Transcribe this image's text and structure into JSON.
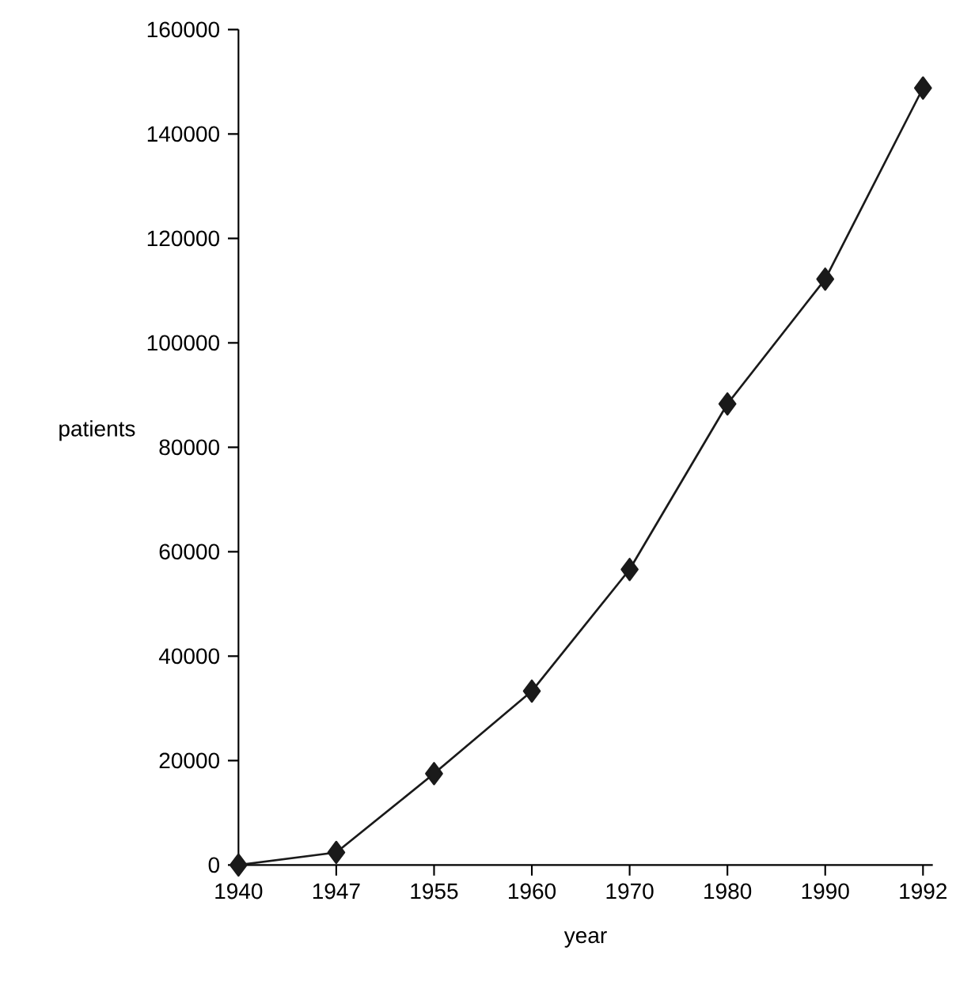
{
  "chart_data": {
    "type": "line",
    "xlabel": "year",
    "ylabel": "patients",
    "categories": [
      "1940",
      "1947",
      "1955",
      "1960",
      "1970",
      "1980",
      "1990",
      "1992"
    ],
    "values": [
      0,
      2400,
      17500,
      33300,
      56600,
      88300,
      112200,
      148800
    ],
    "color": "#1a1a1a",
    "marker": "diamond",
    "line_style": "solid",
    "ylim": [
      0,
      160000
    ],
    "yticks": [
      0,
      20000,
      40000,
      60000,
      80000,
      100000,
      120000,
      140000,
      160000
    ],
    "grid": false
  }
}
